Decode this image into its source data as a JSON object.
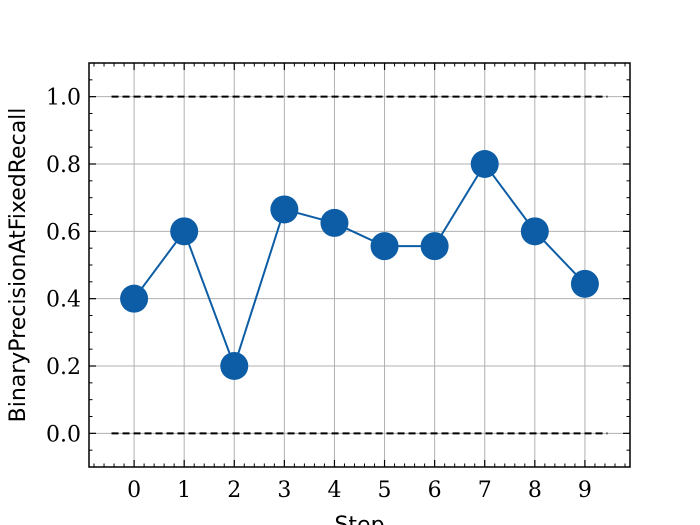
{
  "chart_data": {
    "type": "line",
    "title": "",
    "xlabel": "Step",
    "ylabel": "BinaryPrecisionAtFixedRecall",
    "x": [
      0,
      1,
      2,
      3,
      4,
      5,
      6,
      7,
      8,
      9
    ],
    "series": [
      {
        "values": [
          0.4,
          0.6,
          0.2,
          0.665,
          0.625,
          0.556,
          0.556,
          0.8,
          0.6,
          0.444
        ],
        "color": "#0C5DA5"
      }
    ],
    "reference_lines": [
      {
        "y": 1.0,
        "style": "dashed",
        "color": "#000000"
      },
      {
        "y": 0.0,
        "style": "dashed",
        "color": "#000000"
      }
    ],
    "xlim": [
      -0.9,
      9.9
    ],
    "ylim": [
      -0.1,
      1.1
    ],
    "xticks": [
      "0",
      "1",
      "2",
      "3",
      "4",
      "5",
      "6",
      "7",
      "8",
      "9"
    ],
    "yticks": [
      "0.0",
      "0.2",
      "0.4",
      "0.6",
      "0.8",
      "1.0"
    ],
    "grid": true
  }
}
